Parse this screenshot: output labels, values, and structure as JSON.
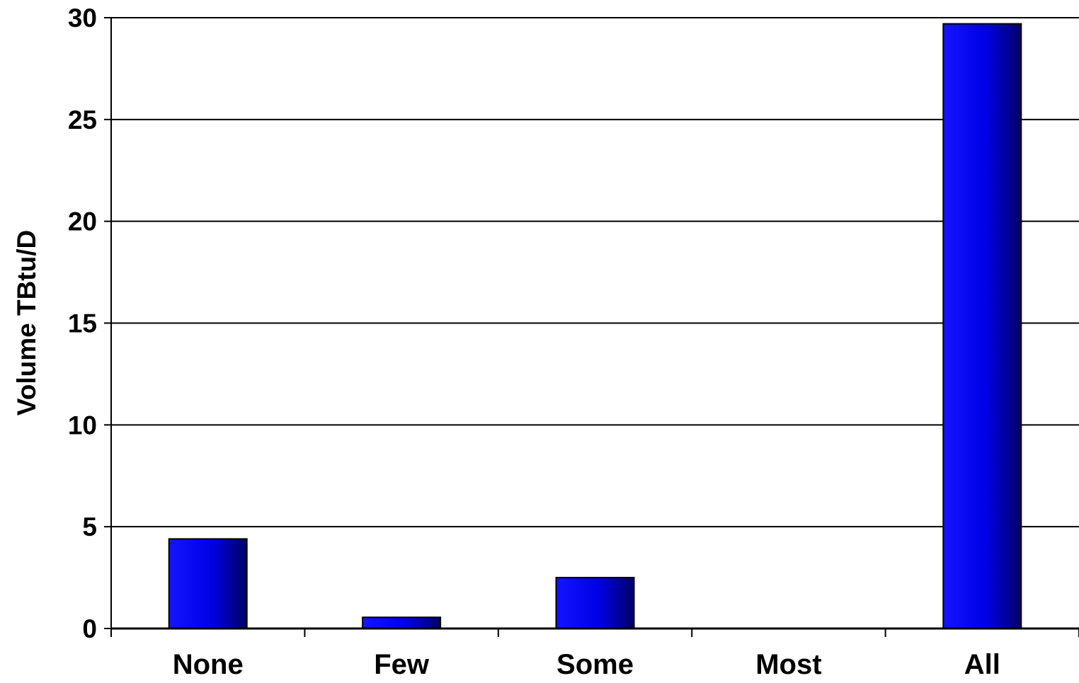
{
  "chart_data": {
    "type": "bar",
    "title": "",
    "xlabel": "",
    "ylabel": "Volume TBtu/D",
    "categories": [
      "None",
      "Few",
      "Some",
      "Most",
      "All"
    ],
    "values": [
      4.4,
      0.55,
      2.5,
      0,
      29.7
    ],
    "ylim": [
      0,
      30
    ],
    "yticks": [
      0,
      5,
      10,
      15,
      20,
      25,
      30
    ],
    "grid": "horizontal",
    "legend": "none",
    "colors": {
      "bar_light": "#1414ff",
      "bar_mid": "#0000e6",
      "bar_dark": "#000066",
      "bar_outline": "#000000",
      "grid": "#000000",
      "axis": "#000000"
    }
  }
}
